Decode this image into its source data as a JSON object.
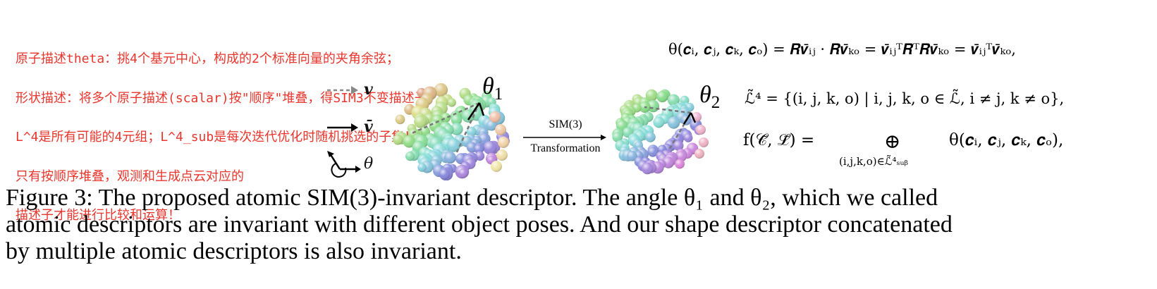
{
  "annotation": {
    "color": "#e8362d",
    "lines": [
      "原子描述theta：挑4个基元中心，构成的2个标准向量的夹角余弦；",
      "形状描述：将多个原子描述(scalar)按\"顺序\"堆叠，得SIM3不变描述子！",
      "L^4是所有可能的4元组；L^4_sub是每次迭代优化时随机挑选的子集！",
      "只有按顺序堆叠，观测和生成点云对应的",
      "描述子才能进行比较和运算！"
    ]
  },
  "figure": {
    "legend": [
      {
        "symbol": "dashed-arrow",
        "label": "v"
      },
      {
        "symbol": "solid-arrow",
        "label": "v̄"
      },
      {
        "symbol": "angle",
        "label": "θ"
      }
    ],
    "theta1": {
      "symbol": "θ",
      "sub": "1"
    },
    "theta2": {
      "symbol": "θ",
      "sub": "2"
    },
    "transform_top": "SIM(3)",
    "transform_bottom": "Transformation"
  },
  "equations": {
    "eq1": "θ(𝒄ᵢ, 𝒄ⱼ, 𝒄ₖ, 𝒄ₒ) = 𝑹𝒗̄ᵢⱼ · 𝑹𝒗̄ₖₒ = 𝒗̄ᵢⱼᵀ𝑹ᵀ𝑹𝒗̄ₖₒ = 𝒗̄ᵢⱼᵀ𝒗̄ₖₒ,",
    "eq2": "ℒ̃⁴ = {(i, j, k, o) | i, j, k, o ∈ ℒ̃, i ≠ j, k ≠ o},",
    "eq3_lhs": "f(𝒞̃, ℒ̃) =",
    "eq3_op": "⊕",
    "eq3_under": "(i,j,k,o)∈ℒ̃⁴ₛᵤᵦ",
    "eq3_rhs": "θ(𝒄ᵢ, 𝒄ⱼ, 𝒄ₖ, 𝒄ₒ),"
  },
  "caption": {
    "lines": [
      "Figure 3: The proposed atomic SIM(3)-invariant descriptor. The angle θ₁ and θ₂, which we called",
      "atomic descriptors are invariant with different object poses. And our shape descriptor concatenated",
      "by multiple atomic descriptors is also invariant."
    ]
  }
}
